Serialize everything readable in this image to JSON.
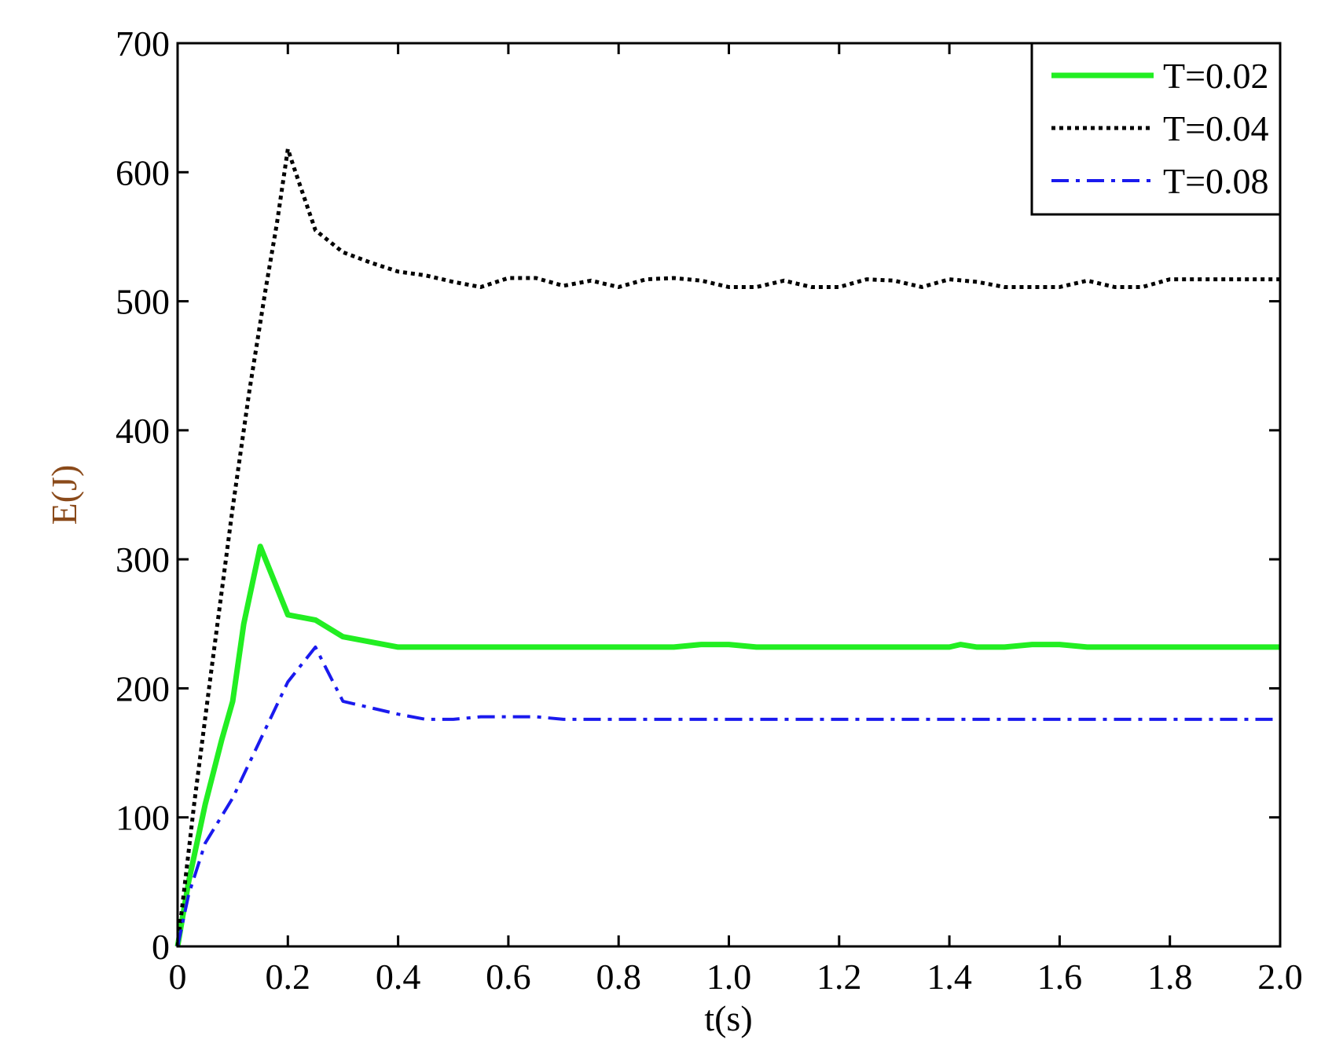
{
  "chart_data": {
    "type": "line",
    "title": "",
    "xlabel": "t(s)",
    "ylabel": "E(J)",
    "xlim": [
      0,
      2.0
    ],
    "ylim": [
      0,
      700
    ],
    "xticks": [
      0,
      0.2,
      0.4,
      0.6,
      0.8,
      1.0,
      1.2,
      1.4,
      1.6,
      1.8,
      2.0
    ],
    "xtick_labels": [
      "0",
      "0.2",
      "0.4",
      "0.6",
      "0.8",
      "1.0",
      "1.2",
      "1.4",
      "1.6",
      "1.8",
      "2.0"
    ],
    "yticks": [
      0,
      100,
      200,
      300,
      400,
      500,
      600,
      700
    ],
    "ytick_labels": [
      "0",
      "100",
      "200",
      "300",
      "400",
      "500",
      "600",
      "700"
    ],
    "grid": false,
    "legend_position": "top-right",
    "series": [
      {
        "name": "T=0.02",
        "color": "#22ee22",
        "style": "solid",
        "x": [
          0,
          0.02,
          0.05,
          0.08,
          0.1,
          0.12,
          0.15,
          0.2,
          0.25,
          0.3,
          0.35,
          0.4,
          0.5,
          0.6,
          0.7,
          0.8,
          0.9,
          0.95,
          1.0,
          1.05,
          1.1,
          1.2,
          1.3,
          1.4,
          1.42,
          1.45,
          1.5,
          1.55,
          1.6,
          1.65,
          1.7,
          1.8,
          1.9,
          2.0
        ],
        "y": [
          0,
          50,
          110,
          160,
          190,
          250,
          310,
          257,
          253,
          240,
          236,
          232,
          232,
          232,
          232,
          232,
          232,
          234,
          234,
          232,
          232,
          232,
          232,
          232,
          234,
          232,
          232,
          234,
          234,
          232,
          232,
          232,
          232,
          232
        ]
      },
      {
        "name": "T=0.04",
        "color": "#000000",
        "style": "dotted",
        "x": [
          0,
          0.03,
          0.06,
          0.1,
          0.13,
          0.16,
          0.18,
          0.2,
          0.21,
          0.23,
          0.25,
          0.3,
          0.35,
          0.4,
          0.45,
          0.5,
          0.55,
          0.6,
          0.65,
          0.7,
          0.75,
          0.8,
          0.85,
          0.9,
          0.95,
          1.0,
          1.05,
          1.1,
          1.15,
          1.2,
          1.25,
          1.3,
          1.35,
          1.4,
          1.45,
          1.5,
          1.55,
          1.6,
          1.65,
          1.7,
          1.75,
          1.8,
          1.85,
          1.9,
          1.95,
          2.0
        ],
        "y": [
          0,
          110,
          210,
          340,
          430,
          510,
          560,
          618,
          605,
          580,
          555,
          538,
          530,
          523,
          520,
          515,
          511,
          518,
          518,
          512,
          516,
          511,
          517,
          518,
          516,
          511,
          511,
          516,
          511,
          511,
          517,
          516,
          511,
          517,
          515,
          511,
          511,
          511,
          516,
          511,
          511,
          517,
          517,
          517,
          517,
          517
        ]
      },
      {
        "name": "T=0.08",
        "color": "#1a1aee",
        "style": "dashdot",
        "x": [
          0,
          0.02,
          0.05,
          0.1,
          0.15,
          0.2,
          0.25,
          0.27,
          0.3,
          0.35,
          0.4,
          0.45,
          0.5,
          0.55,
          0.6,
          0.65,
          0.7,
          0.8,
          0.9,
          1.0,
          1.2,
          1.4,
          1.6,
          1.8,
          2.0
        ],
        "y": [
          0,
          40,
          80,
          115,
          160,
          205,
          232,
          215,
          190,
          185,
          180,
          176,
          176,
          178,
          178,
          178,
          176,
          176,
          176,
          176,
          176,
          176,
          176,
          176,
          176
        ]
      }
    ]
  }
}
